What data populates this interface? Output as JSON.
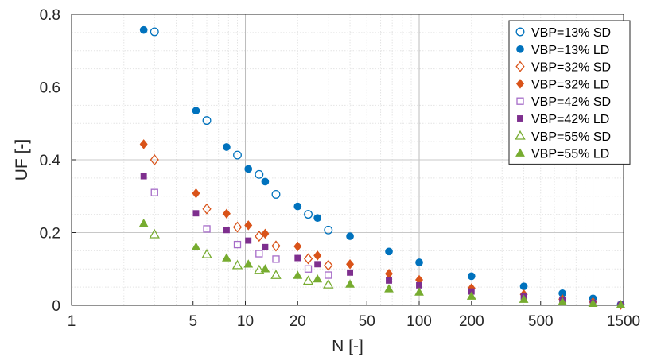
{
  "chart_data": {
    "type": "scatter",
    "xlabel": "N [-]",
    "ylabel": "UF [-]",
    "xscale": "log",
    "xlim": [
      1,
      1500
    ],
    "ylim": [
      0,
      0.8
    ],
    "x_ticks": [
      {
        "value": 1,
        "label": "1"
      },
      {
        "value": 5,
        "label": "5"
      },
      {
        "value": 10,
        "label": "10"
      },
      {
        "value": 20,
        "label": "20"
      },
      {
        "value": 50,
        "label": "50"
      },
      {
        "value": 100,
        "label": "100"
      },
      {
        "value": 200,
        "label": "200"
      },
      {
        "value": 500,
        "label": "500"
      },
      {
        "value": 1500,
        "label": "1500"
      }
    ],
    "y_ticks": [
      {
        "value": 0,
        "label": "0"
      },
      {
        "value": 0.2,
        "label": "0.2"
      },
      {
        "value": 0.4,
        "label": "0.4"
      },
      {
        "value": 0.6,
        "label": "0.6"
      },
      {
        "value": 0.8,
        "label": "0.8"
      }
    ],
    "grid": true,
    "minor_grid": true,
    "legend_position": "top-right",
    "series": [
      {
        "name": "VBP=13% SD",
        "color": "#0072BD",
        "marker": "circle",
        "filled": false,
        "points": [
          [
            3,
            0.752
          ],
          [
            6,
            0.508
          ],
          [
            9,
            0.413
          ],
          [
            12,
            0.36
          ],
          [
            15,
            0.305
          ],
          [
            23,
            0.25
          ],
          [
            30,
            0.207
          ]
        ]
      },
      {
        "name": "VBP=13% LD",
        "color": "#0072BD",
        "marker": "circle",
        "filled": true,
        "points": [
          [
            2.6,
            0.757
          ],
          [
            5.2,
            0.535
          ],
          [
            7.8,
            0.435
          ],
          [
            10.4,
            0.375
          ],
          [
            13,
            0.34
          ],
          [
            20,
            0.272
          ],
          [
            26,
            0.24
          ],
          [
            40,
            0.19
          ],
          [
            67,
            0.148
          ],
          [
            100,
            0.118
          ],
          [
            200,
            0.08
          ],
          [
            400,
            0.052
          ],
          [
            667,
            0.033
          ],
          [
            1000,
            0.019
          ],
          [
            1445,
            0.002
          ]
        ]
      },
      {
        "name": "VBP=32% SD",
        "color": "#D95319",
        "marker": "diamond",
        "filled": false,
        "points": [
          [
            3,
            0.4
          ],
          [
            6,
            0.265
          ],
          [
            9,
            0.215
          ],
          [
            12,
            0.19
          ],
          [
            15,
            0.163
          ],
          [
            23,
            0.128
          ],
          [
            30,
            0.11
          ]
        ]
      },
      {
        "name": "VBP=32% LD",
        "color": "#D95319",
        "marker": "diamond",
        "filled": true,
        "points": [
          [
            2.6,
            0.443
          ],
          [
            5.2,
            0.308
          ],
          [
            7.8,
            0.252
          ],
          [
            10.4,
            0.22
          ],
          [
            13,
            0.197
          ],
          [
            20,
            0.162
          ],
          [
            26,
            0.137
          ],
          [
            40,
            0.113
          ],
          [
            67,
            0.087
          ],
          [
            100,
            0.07
          ],
          [
            200,
            0.047
          ],
          [
            400,
            0.03
          ],
          [
            667,
            0.017
          ],
          [
            1000,
            0.009
          ],
          [
            1445,
            0.001
          ]
        ]
      },
      {
        "name": "VBP=42% SD",
        "color": "#A66CC8",
        "marker": "square",
        "filled": false,
        "points": [
          [
            3,
            0.31
          ],
          [
            6,
            0.21
          ],
          [
            9,
            0.167
          ],
          [
            12,
            0.142
          ],
          [
            15,
            0.127
          ],
          [
            23,
            0.1
          ],
          [
            30,
            0.083
          ]
        ]
      },
      {
        "name": "VBP=42% LD",
        "color": "#7E2F8E",
        "marker": "square",
        "filled": true,
        "points": [
          [
            2.6,
            0.355
          ],
          [
            5.2,
            0.253
          ],
          [
            7.8,
            0.207
          ],
          [
            10.4,
            0.178
          ],
          [
            13,
            0.16
          ],
          [
            20,
            0.13
          ],
          [
            26,
            0.113
          ],
          [
            40,
            0.09
          ],
          [
            67,
            0.068
          ],
          [
            100,
            0.055
          ],
          [
            200,
            0.038
          ],
          [
            400,
            0.024
          ],
          [
            667,
            0.014
          ],
          [
            1000,
            0.007
          ],
          [
            1445,
            0.001
          ]
        ]
      },
      {
        "name": "VBP=55% SD",
        "color": "#77AC30",
        "marker": "triangle",
        "filled": false,
        "points": [
          [
            3,
            0.195
          ],
          [
            6,
            0.14
          ],
          [
            9,
            0.11
          ],
          [
            12,
            0.097
          ],
          [
            15,
            0.083
          ],
          [
            23,
            0.067
          ],
          [
            30,
            0.057
          ]
        ]
      },
      {
        "name": "VBP=55% LD",
        "color": "#77AC30",
        "marker": "triangle",
        "filled": true,
        "points": [
          [
            2.6,
            0.225
          ],
          [
            5.2,
            0.16
          ],
          [
            7.8,
            0.13
          ],
          [
            10.4,
            0.113
          ],
          [
            13,
            0.1
          ],
          [
            20,
            0.082
          ],
          [
            26,
            0.072
          ],
          [
            40,
            0.058
          ],
          [
            67,
            0.045
          ],
          [
            100,
            0.036
          ],
          [
            200,
            0.025
          ],
          [
            400,
            0.016
          ],
          [
            667,
            0.009
          ],
          [
            1000,
            0.005
          ],
          [
            1445,
            0.001
          ]
        ]
      }
    ]
  }
}
